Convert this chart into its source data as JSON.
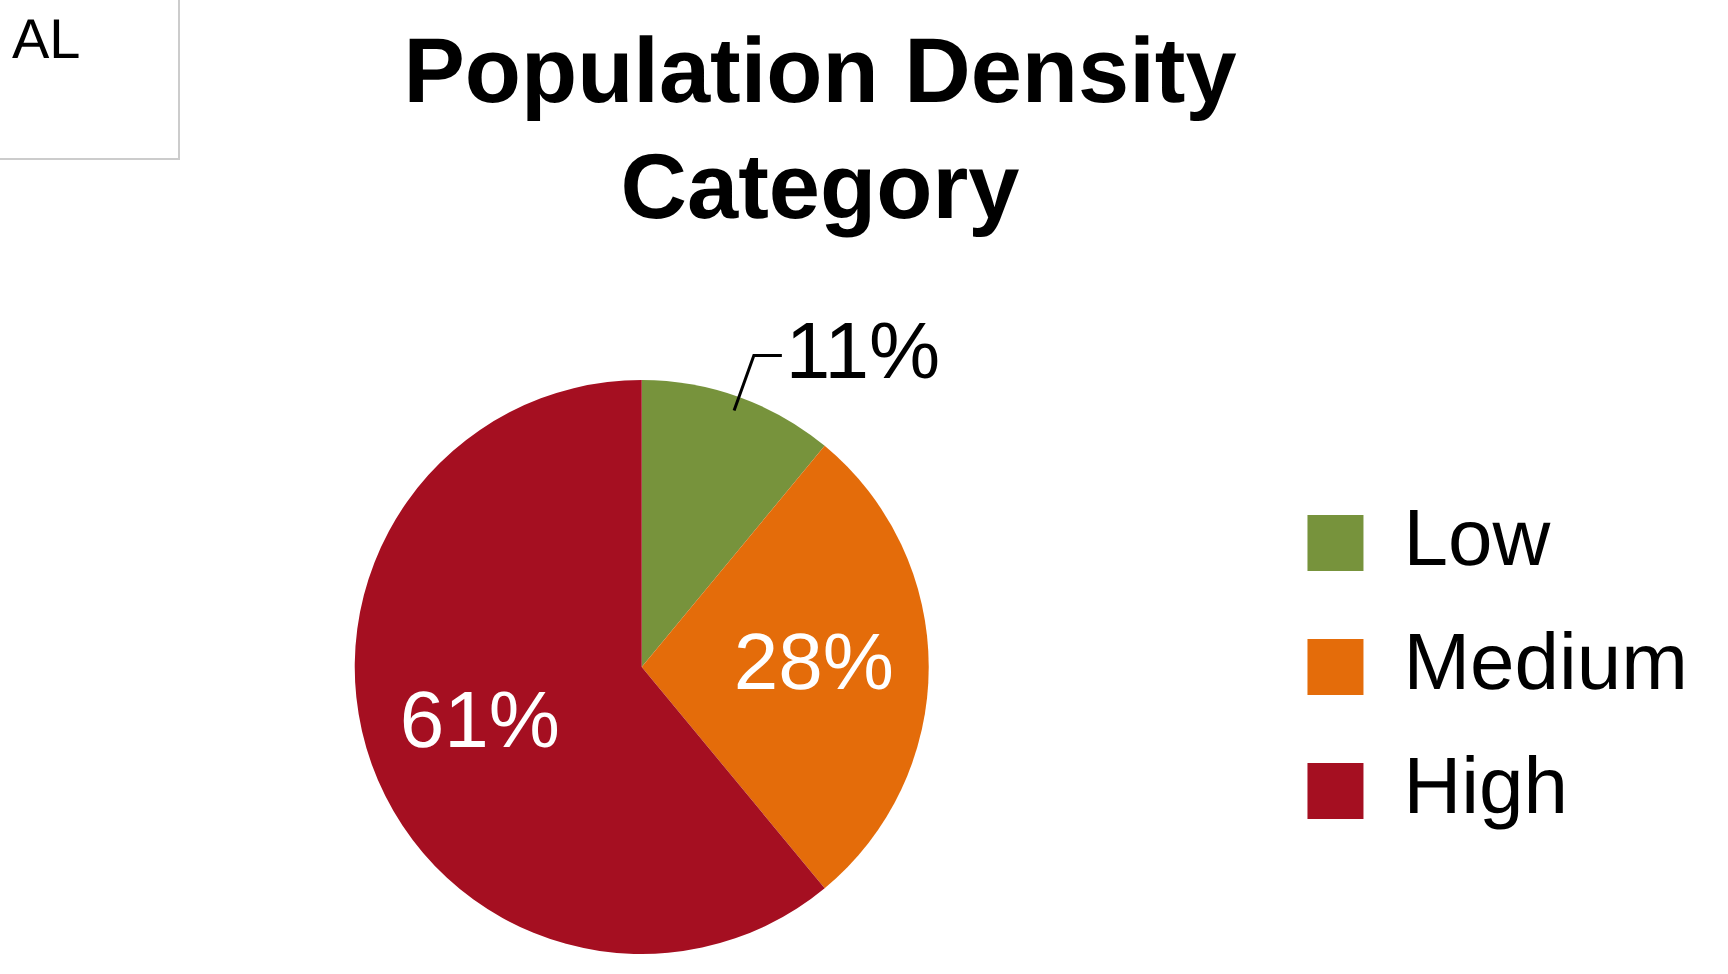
{
  "chart_data": {
    "type": "pie",
    "title": "Population Density Category",
    "categories": [
      "Low",
      "Medium",
      "High"
    ],
    "values": [
      11,
      28,
      61
    ],
    "value_labels": [
      "11%",
      "28%",
      "61%"
    ],
    "colors": [
      "#77933c",
      "#e46c0a",
      "#a50f21"
    ],
    "legend": "right",
    "annotations": [
      "AL"
    ]
  }
}
